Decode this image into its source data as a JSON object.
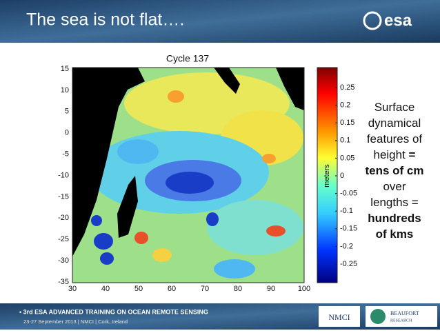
{
  "header": {
    "title": "The sea is not flat….",
    "logo": "esa"
  },
  "figure": {
    "title": "Cycle 137",
    "y_ticks": [
      "15",
      "10",
      "5",
      "0",
      "-5",
      "-10",
      "-15",
      "-20",
      "-25",
      "-30",
      "-35"
    ],
    "x_ticks": [
      "30",
      "40",
      "50",
      "60",
      "70",
      "80",
      "90",
      "100"
    ]
  },
  "colorbar": {
    "label": "meters",
    "ticks": [
      "0.25",
      "0.2",
      "0.15",
      "0.1",
      "0.05",
      "0",
      "-0.05",
      "-0.1",
      "-0.15",
      "-0.2",
      "-0.25"
    ]
  },
  "caption": {
    "lines": [
      [
        {
          "text": "Surface",
          "bold": false
        }
      ],
      [
        {
          "text": "dynamical",
          "bold": false
        }
      ],
      [
        {
          "text": "features of",
          "bold": false
        }
      ],
      [
        {
          "text": "height ",
          "bold": false
        },
        {
          "text": "=",
          "bold": true
        }
      ],
      [
        {
          "text": "tens of cm",
          "bold": true
        }
      ],
      [
        {
          "text": "over",
          "bold": false
        }
      ],
      [
        {
          "text": "lengths =",
          "bold": false
        }
      ],
      [
        {
          "text": "hundreds",
          "bold": true
        }
      ],
      [
        {
          "text": "of kms",
          "bold": true
        }
      ]
    ]
  },
  "footer": {
    "event": "• 3rd ESA ADVANCED TRAINING ON OCEAN REMOTE SENSING",
    "details": "23-27 September 2013 | NMCI | Cork, Ireland",
    "partner1": "NMCI",
    "partner2": "BEAUFORT",
    "partner2_sub": "RESEARCH"
  }
}
